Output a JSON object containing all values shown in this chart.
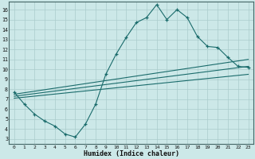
{
  "xlabel": "Humidex (Indice chaleur)",
  "bg_color": "#cce8e8",
  "grid_color": "#aacccc",
  "line_color": "#1a6b6b",
  "xlim": [
    -0.5,
    23.5
  ],
  "ylim": [
    2.5,
    16.8
  ],
  "xticks": [
    0,
    1,
    2,
    3,
    4,
    5,
    6,
    7,
    8,
    9,
    10,
    11,
    12,
    13,
    14,
    15,
    16,
    17,
    18,
    19,
    20,
    21,
    22,
    23
  ],
  "yticks": [
    3,
    4,
    5,
    6,
    7,
    8,
    9,
    10,
    11,
    12,
    13,
    14,
    15,
    16
  ],
  "curve1_x": [
    0,
    1,
    2,
    3,
    4,
    5,
    6,
    7,
    8,
    9,
    10,
    11,
    12,
    13,
    14,
    15,
    16,
    17,
    18,
    19,
    20,
    21,
    22,
    23
  ],
  "curve1_y": [
    7.7,
    6.5,
    5.5,
    4.8,
    4.3,
    3.5,
    3.2,
    4.5,
    6.5,
    9.5,
    11.5,
    13.2,
    14.7,
    15.2,
    16.5,
    15.0,
    16.0,
    15.2,
    13.3,
    12.3,
    12.2,
    11.2,
    10.3,
    10.2
  ],
  "curve2_x": [
    0,
    23
  ],
  "curve2_y": [
    7.5,
    11.0
  ],
  "curve3_x": [
    0,
    23
  ],
  "curve3_y": [
    7.3,
    10.3
  ],
  "curve4_x": [
    0,
    23
  ],
  "curve4_y": [
    7.1,
    9.5
  ]
}
